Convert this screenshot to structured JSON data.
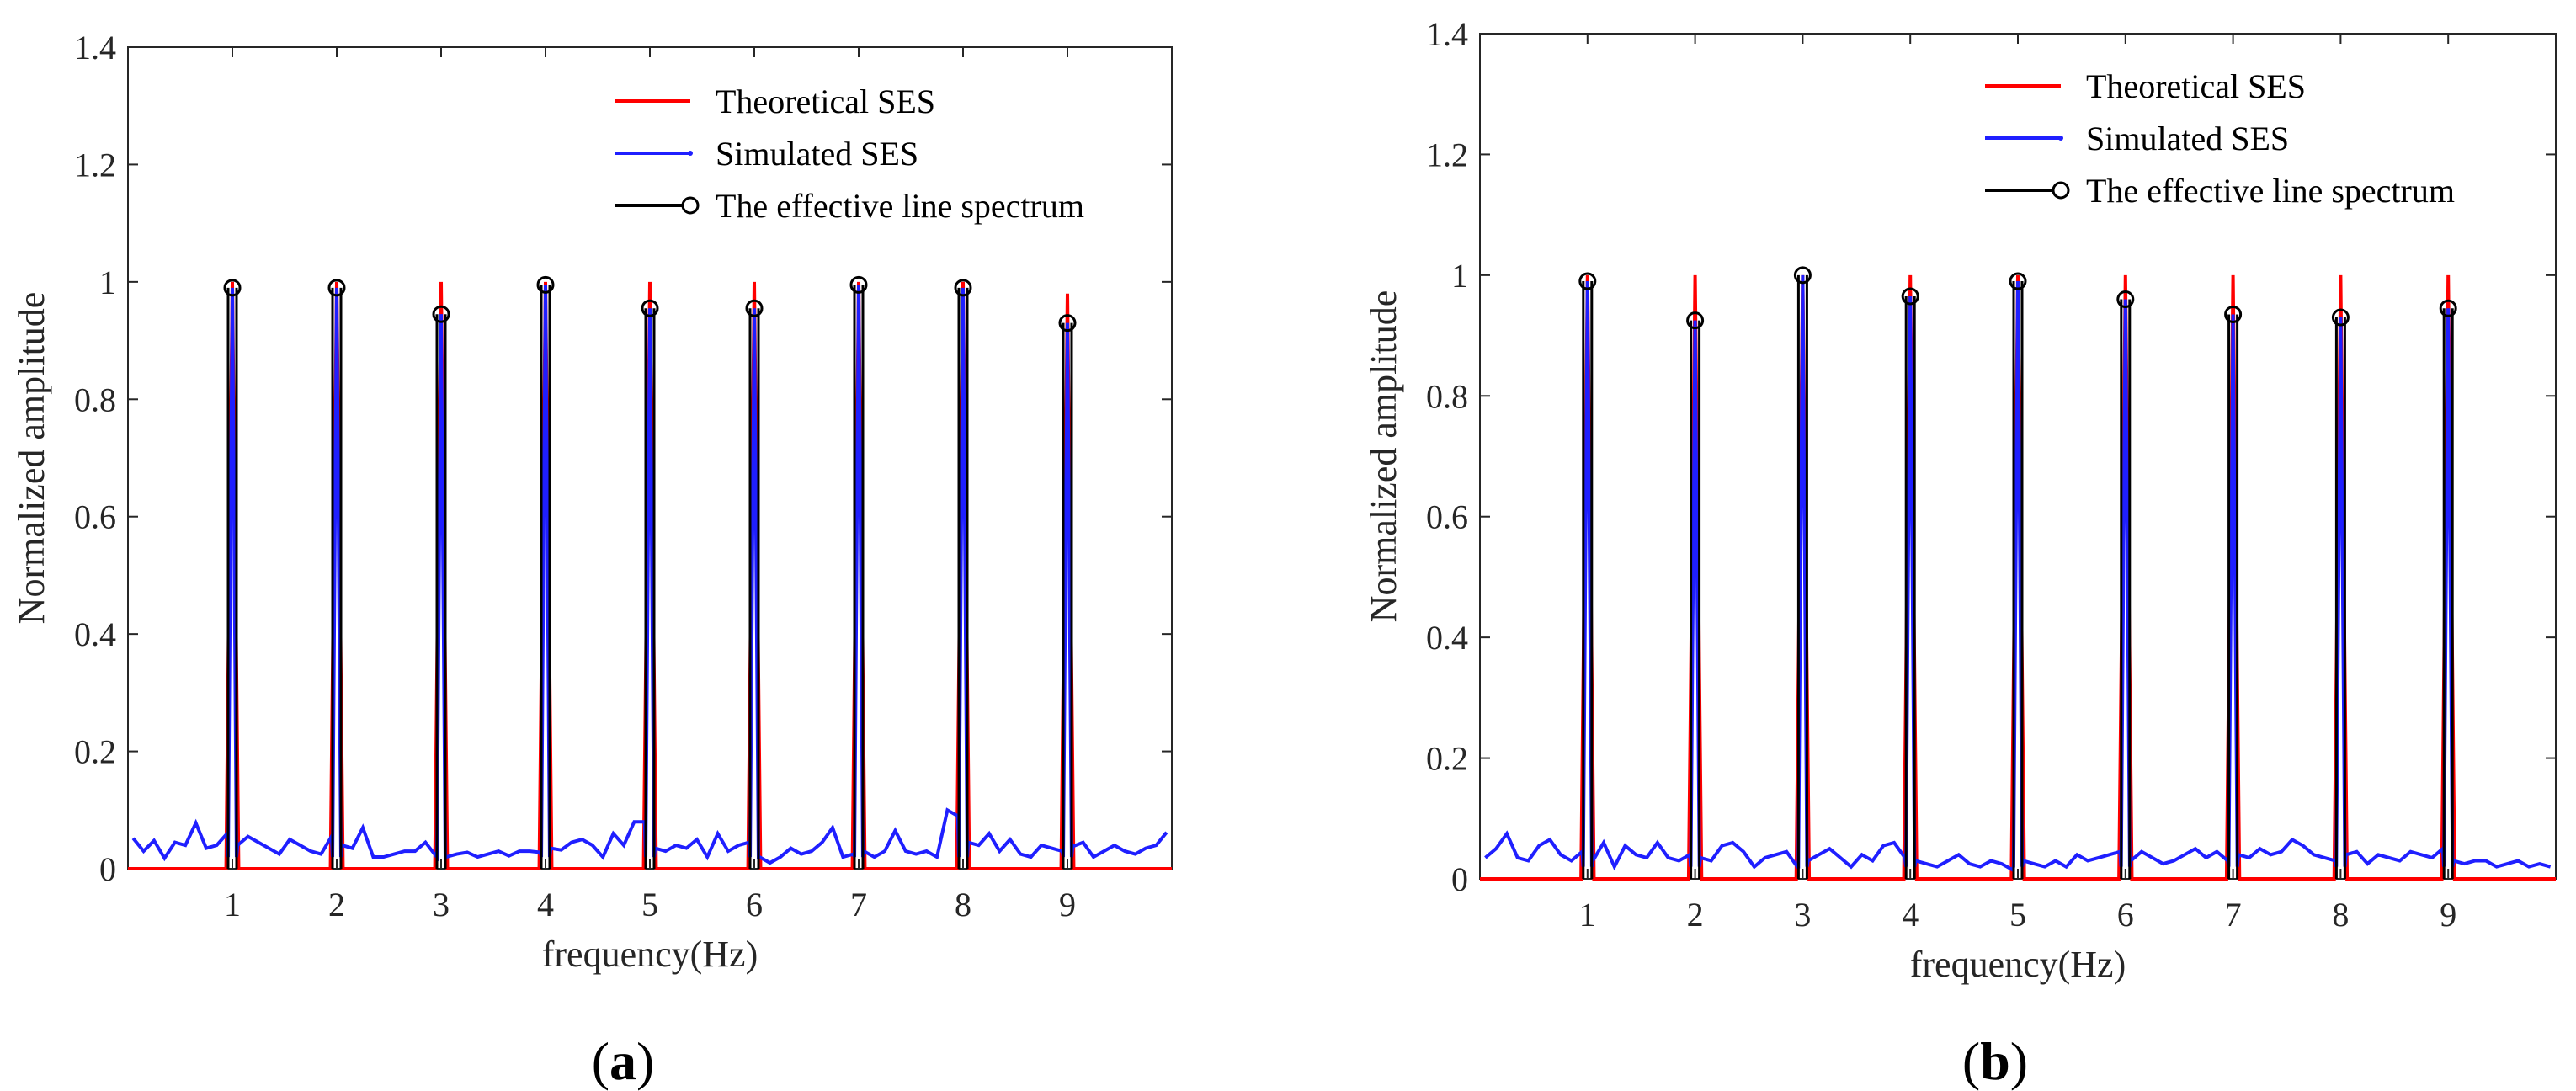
{
  "figure": {
    "panel_labels": [
      {
        "open": "(",
        "letter": "a",
        "close": ")"
      },
      {
        "open": "(",
        "letter": "b",
        "close": ")"
      }
    ]
  },
  "colors": {
    "theoretical": "#ff0000",
    "simulated": "#1f1fff",
    "line_spectrum": "#000000"
  },
  "chart_data": [
    {
      "type": "line",
      "panel": "a",
      "xlabel": "frequency(Hz)",
      "ylabel": "Normalized amplitude",
      "xlim": [
        0,
        10
      ],
      "ylim": [
        0,
        1.4
      ],
      "xticks": [
        1,
        2,
        3,
        4,
        5,
        6,
        7,
        8,
        9
      ],
      "yticks": [
        0,
        0.2,
        0.4,
        0.6,
        0.8,
        1,
        1.2,
        1.4
      ],
      "ytick_labels": [
        "0",
        "0.2",
        "0.4",
        "0.6",
        "0.8",
        "1",
        "1.2",
        "1.4"
      ],
      "legend": [
        "Theoretical SES",
        "Simulated SES",
        "The effective line spectrum"
      ],
      "legend_position": "top-right",
      "theoretical_peaks": {
        "x": [
          1,
          2,
          3,
          4,
          5,
          6,
          7,
          8,
          9
        ],
        "y": [
          1,
          1,
          1,
          1,
          1,
          1,
          1,
          1,
          0.98
        ]
      },
      "effective_line_spectrum": {
        "x": [
          1,
          2,
          3,
          4,
          5,
          6,
          7,
          8,
          9
        ],
        "y": [
          0.99,
          0.99,
          0.945,
          0.995,
          0.955,
          0.955,
          0.995,
          0.99,
          0.93
        ]
      },
      "simulated_baseline": [
        0.052,
        0.03,
        0.048,
        0.018,
        0.045,
        0.04,
        0.078,
        0.035,
        0.04,
        0.06,
        0.04,
        0.055,
        0.045,
        0.035,
        0.025,
        0.05,
        0.04,
        0.03,
        0.025,
        0.055,
        0.04,
        0.035,
        0.07,
        0.02,
        0.02,
        0.025,
        0.03,
        0.03,
        0.045,
        0.022,
        0.02,
        0.025,
        0.028,
        0.02,
        0.025,
        0.03,
        0.022,
        0.03,
        0.03,
        0.028,
        0.035,
        0.032,
        0.045,
        0.05,
        0.04,
        0.02,
        0.06,
        0.04,
        0.08,
        0.08,
        0.035,
        0.03,
        0.04,
        0.035,
        0.05,
        0.02,
        0.06,
        0.03,
        0.04,
        0.045,
        0.02,
        0.01,
        0.02,
        0.035,
        0.025,
        0.03,
        0.045,
        0.07,
        0.02,
        0.025,
        0.03,
        0.02,
        0.03,
        0.065,
        0.03,
        0.025,
        0.03,
        0.02,
        0.1,
        0.09,
        0.045,
        0.04,
        0.06,
        0.03,
        0.05,
        0.025,
        0.02,
        0.04,
        0.035,
        0.03,
        0.038,
        0.045,
        0.02,
        0.03,
        0.04,
        0.03,
        0.025,
        0.035,
        0.04,
        0.062
      ]
    },
    {
      "type": "line",
      "panel": "b",
      "xlabel": "frequency(Hz)",
      "ylabel": "Normalized amplitude",
      "xlim": [
        0,
        10
      ],
      "ylim": [
        0,
        1.4
      ],
      "xticks": [
        1,
        2,
        3,
        4,
        5,
        6,
        7,
        8,
        9
      ],
      "yticks": [
        0,
        0.2,
        0.4,
        0.6,
        0.8,
        1,
        1.2,
        1.4
      ],
      "ytick_labels": [
        "0",
        "0.2",
        "0.4",
        "0.6",
        "0.8",
        "1",
        "1.2",
        "1.4"
      ],
      "legend": [
        "Theoretical SES",
        "Simulated SES",
        "The effective line spectrum"
      ],
      "legend_position": "top-right",
      "theoretical_peaks": {
        "x": [
          1,
          2,
          3,
          4,
          5,
          6,
          7,
          8,
          9
        ],
        "y": [
          1,
          1,
          1,
          1,
          1,
          1,
          1,
          1,
          1
        ]
      },
      "effective_line_spectrum": {
        "x": [
          1,
          2,
          3,
          4,
          5,
          6,
          7,
          8,
          9
        ],
        "y": [
          0.99,
          0.925,
          1.0,
          0.965,
          0.99,
          0.96,
          0.935,
          0.93,
          0.945
        ]
      },
      "simulated_baseline": [
        0.035,
        0.05,
        0.075,
        0.035,
        0.03,
        0.055,
        0.065,
        0.04,
        0.03,
        0.045,
        0.03,
        0.06,
        0.02,
        0.055,
        0.04,
        0.035,
        0.06,
        0.035,
        0.03,
        0.04,
        0.035,
        0.03,
        0.055,
        0.06,
        0.045,
        0.02,
        0.035,
        0.04,
        0.045,
        0.02,
        0.03,
        0.04,
        0.05,
        0.035,
        0.02,
        0.04,
        0.03,
        0.055,
        0.06,
        0.035,
        0.03,
        0.025,
        0.02,
        0.03,
        0.04,
        0.025,
        0.02,
        0.03,
        0.025,
        0.015,
        0.03,
        0.025,
        0.02,
        0.03,
        0.02,
        0.04,
        0.03,
        0.035,
        0.04,
        0.045,
        0.03,
        0.045,
        0.035,
        0.025,
        0.03,
        0.04,
        0.05,
        0.035,
        0.045,
        0.03,
        0.04,
        0.035,
        0.05,
        0.04,
        0.045,
        0.065,
        0.055,
        0.04,
        0.035,
        0.03,
        0.04,
        0.045,
        0.025,
        0.04,
        0.035,
        0.03,
        0.045,
        0.04,
        0.035,
        0.05,
        0.03,
        0.025,
        0.03,
        0.03,
        0.02,
        0.025,
        0.03,
        0.02,
        0.025,
        0.02
      ]
    }
  ]
}
